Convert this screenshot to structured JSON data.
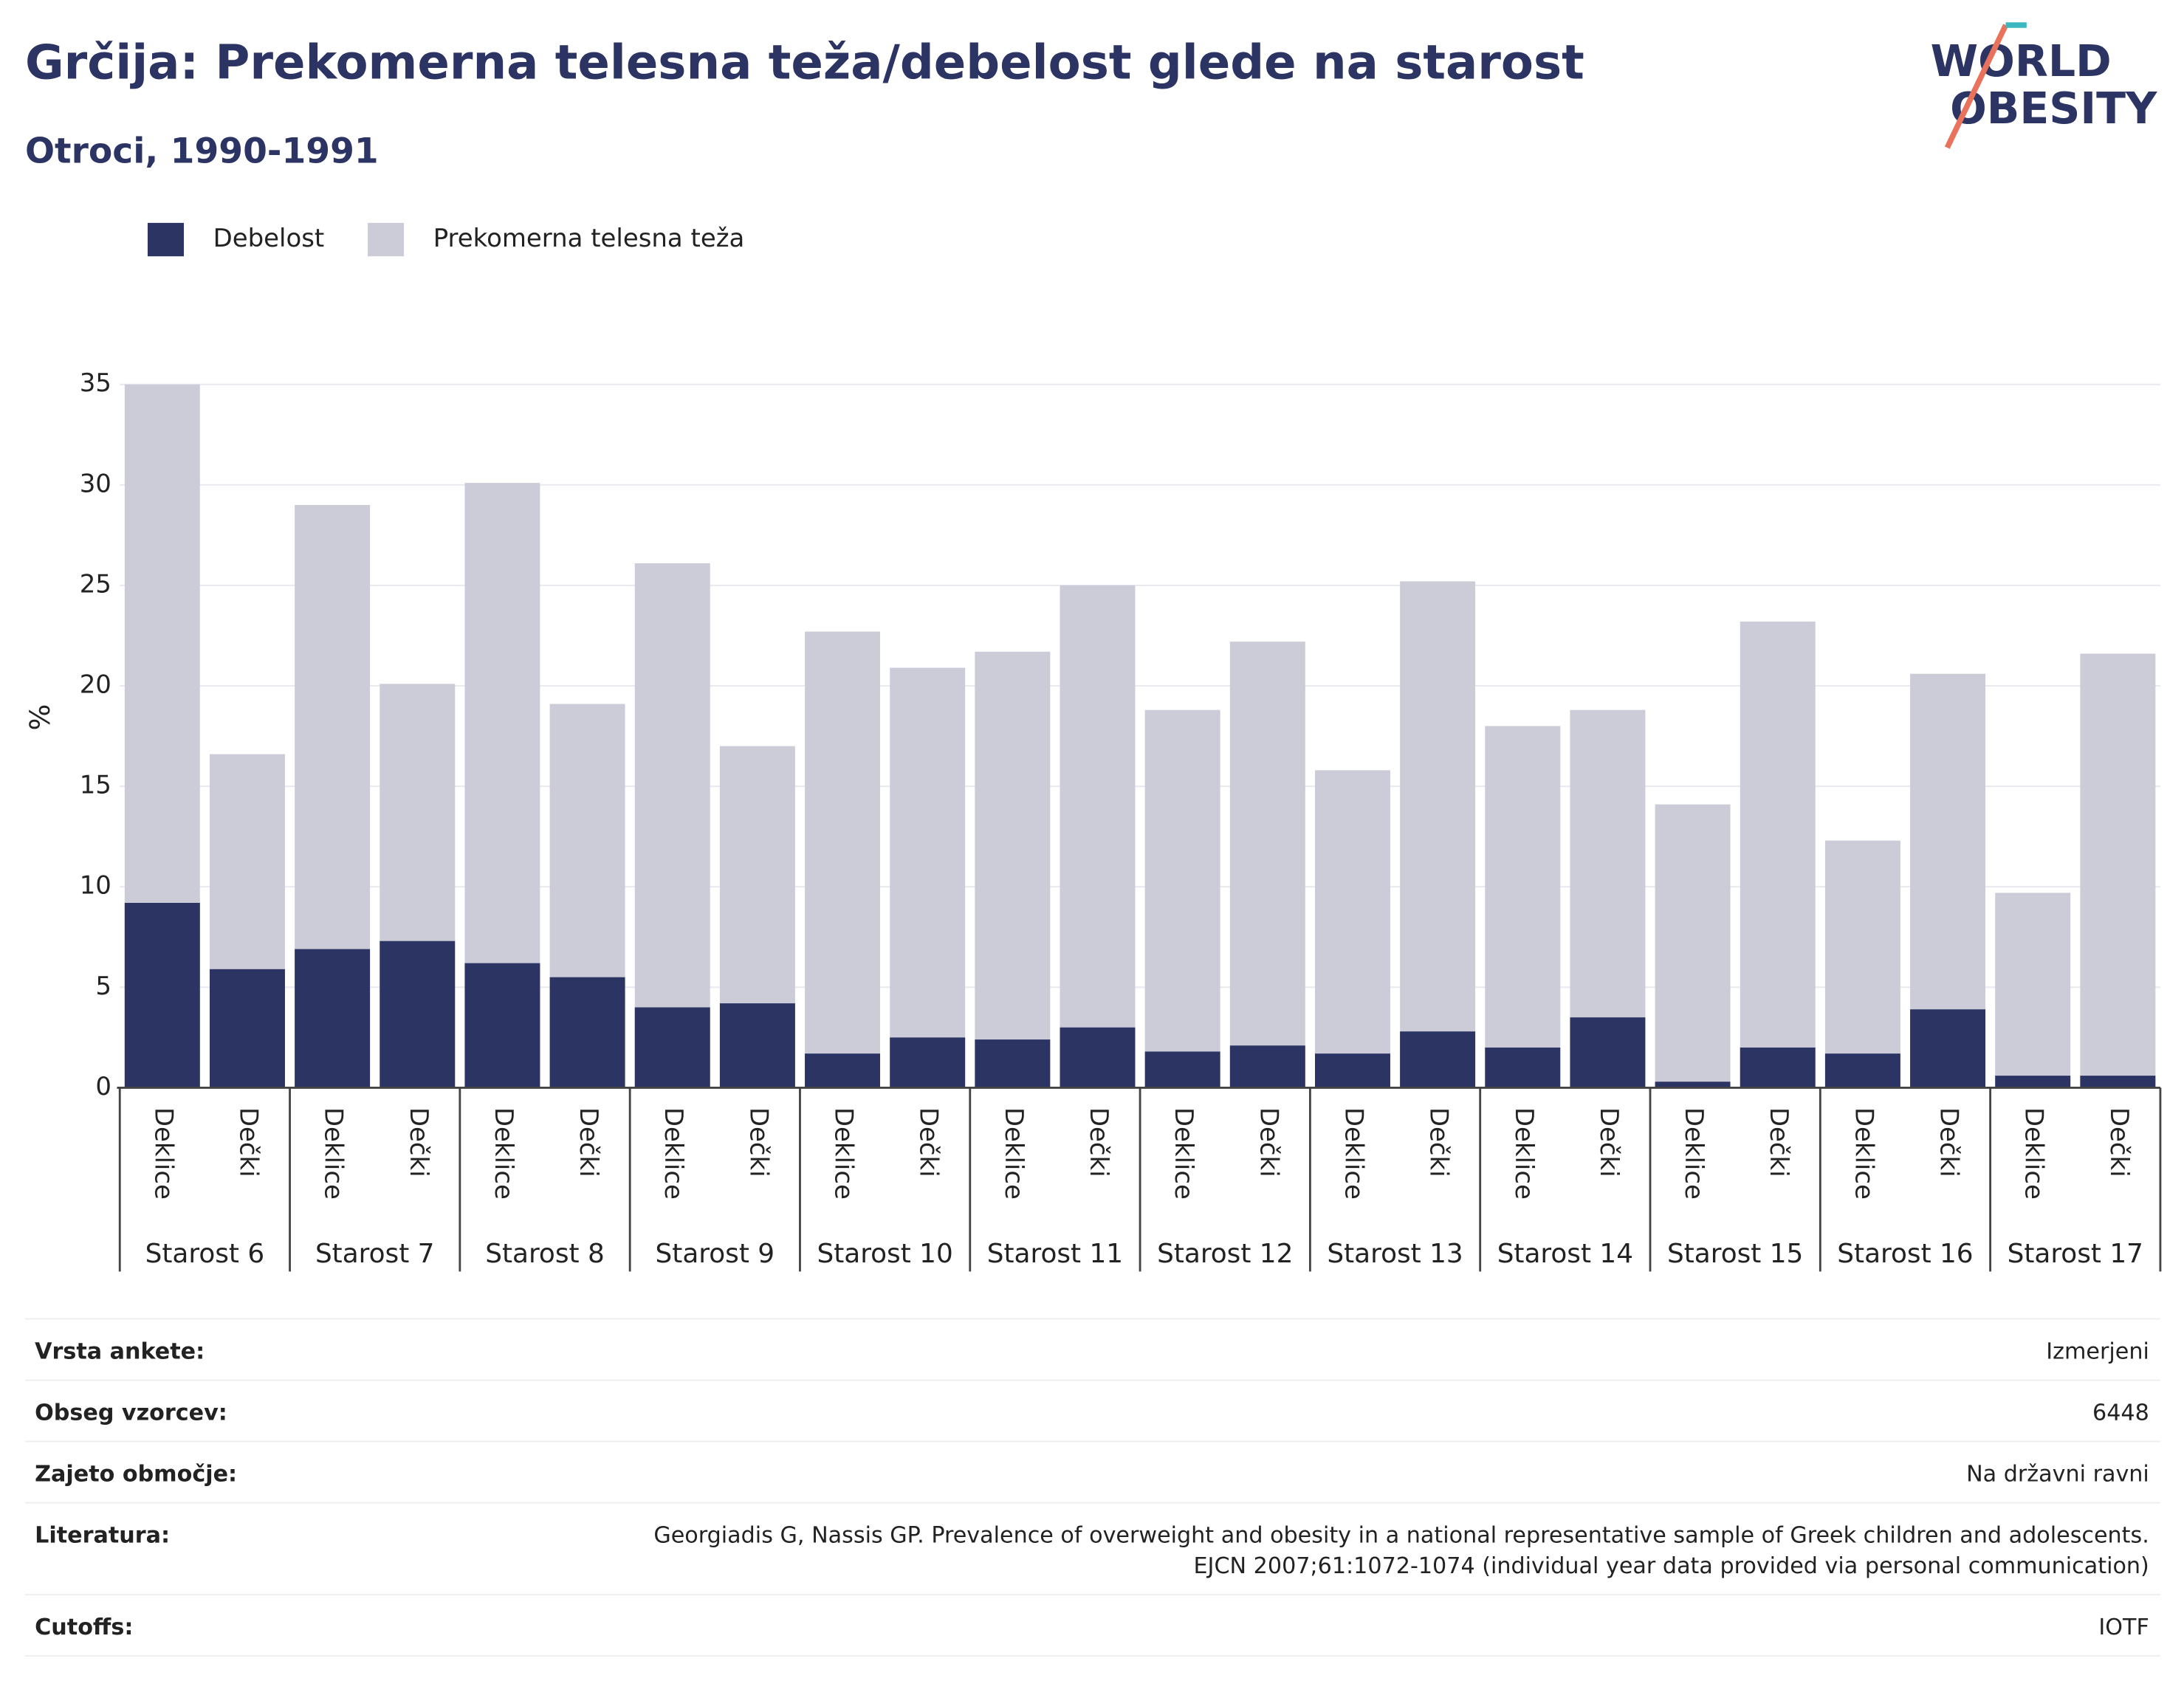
{
  "chart_data": {
    "type": "bar",
    "title": "Grčija: Prekomerna telesna teža/debelost glede na starost",
    "subtitle": "Otroci, 1990-1991",
    "logo": [
      "WORLD",
      "OBESITY"
    ],
    "ylabel": "%",
    "categories": [
      "Deklice",
      "Dečki",
      "Deklice",
      "Dečki",
      "Deklice",
      "Dečki",
      "Deklice",
      "Dečki",
      "Deklice",
      "Dečki",
      "Deklice",
      "Dečki",
      "Deklice",
      "Dečki",
      "Deklice",
      "Dečki",
      "Deklice",
      "Dečki",
      "Deklice",
      "Dečki",
      "Deklice",
      "Dečki",
      "Deklice",
      "Dečki"
    ],
    "groups": [
      "Starost 6",
      "Starost 7",
      "Starost 8",
      "Starost 9",
      "Starost 10",
      "Starost 11",
      "Starost 12",
      "Starost 13",
      "Starost 14",
      "Starost 15",
      "Starost 16",
      "Starost 17"
    ],
    "series": [
      {
        "name": "Prekomerna telesna teža",
        "color": "#cbccd8",
        "values": [
          35.0,
          16.6,
          29.0,
          20.1,
          30.1,
          19.1,
          26.1,
          17.0,
          22.7,
          20.9,
          21.7,
          25.0,
          18.8,
          22.2,
          15.8,
          25.2,
          18.0,
          18.8,
          14.1,
          23.2,
          12.3,
          20.6,
          9.7,
          21.6
        ]
      },
      {
        "name": "Debelost",
        "color": "#2b3463",
        "values": [
          9.2,
          5.9,
          6.9,
          7.3,
          6.2,
          5.5,
          4.0,
          4.2,
          1.7,
          2.5,
          2.4,
          3.0,
          1.8,
          2.1,
          1.7,
          2.8,
          2.0,
          3.5,
          0.3,
          2.0,
          1.7,
          3.9,
          0.6,
          0.6
        ]
      }
    ],
    "legend_order": [
      1,
      0
    ],
    "ylim": [
      0,
      35
    ],
    "yticks": [
      0,
      5,
      10,
      15,
      20,
      25,
      30,
      35
    ],
    "grid": true
  },
  "table": {
    "rows": [
      {
        "label": "Vrsta ankete:",
        "value": [
          "Izmerjeni"
        ]
      },
      {
        "label": "Obseg vzorcev:",
        "value": [
          "6448"
        ]
      },
      {
        "label": "Zajeto območje:",
        "value": [
          "Na državni ravni"
        ]
      },
      {
        "label": "Literatura:",
        "value": [
          "Georgiadis G, Nassis GP. Prevalence of overweight and obesity in a national representative sample of Greek children and adolescents.",
          "EJCN 2007;61:1072-1074 (individual year data provided via personal communication)"
        ]
      },
      {
        "label": "Cutoffs:",
        "value": [
          "IOTF"
        ]
      }
    ]
  }
}
